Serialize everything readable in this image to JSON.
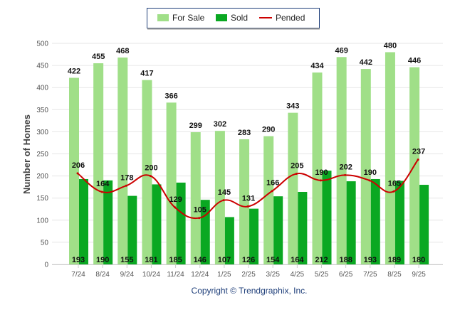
{
  "chart_data": {
    "type": "bar",
    "title": "",
    "xlabel": "",
    "ylabel": "Number of Homes",
    "ylim": [
      0,
      500
    ],
    "yticks": [
      0,
      50,
      100,
      150,
      200,
      250,
      300,
      350,
      400,
      450,
      500
    ],
    "grid": true,
    "legend_position": "top-center",
    "categories": [
      "7/24",
      "8/24",
      "9/24",
      "10/24",
      "11/24",
      "12/24",
      "1/25",
      "2/25",
      "3/25",
      "4/25",
      "5/25",
      "6/25",
      "7/25",
      "8/25",
      "9/25"
    ],
    "series": [
      {
        "name": "For Sale",
        "type": "bar",
        "color": "#a0df88",
        "values": [
          422,
          455,
          468,
          417,
          366,
          299,
          302,
          283,
          290,
          343,
          434,
          469,
          442,
          480,
          446
        ]
      },
      {
        "name": "Sold",
        "type": "bar",
        "color": "#0aa822",
        "values": [
          193,
          190,
          155,
          181,
          185,
          146,
          107,
          126,
          154,
          164,
          212,
          188,
          193,
          189,
          180
        ]
      },
      {
        "name": "Pended",
        "type": "line",
        "color": "#cc0000",
        "values": [
          206,
          164,
          178,
          200,
          129,
          105,
          145,
          131,
          166,
          205,
          190,
          202,
          190,
          165,
          237
        ]
      }
    ],
    "footer": "Copyright © Trendgraphix, Inc."
  }
}
